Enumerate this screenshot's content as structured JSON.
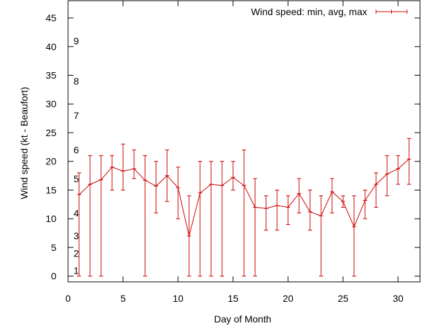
{
  "chart_data": {
    "type": "line",
    "title": "",
    "xlabel": "Day of Month",
    "ylabel": "Wind speed (kt - Beaufort)",
    "xlim": [
      0,
      32
    ],
    "ylim": [
      -1,
      48
    ],
    "xticks": [
      0,
      5,
      10,
      15,
      20,
      25,
      30
    ],
    "yticks": [
      0,
      5,
      10,
      15,
      20,
      25,
      30,
      35,
      40,
      45
    ],
    "grid": false,
    "legend": "top-right",
    "beaufort_scale": [
      {
        "label": "1",
        "kt": 1
      },
      {
        "label": "2",
        "kt": 4
      },
      {
        "label": "3",
        "kt": 7
      },
      {
        "label": "4",
        "kt": 11
      },
      {
        "label": "5",
        "kt": 17
      },
      {
        "label": "6",
        "kt": 22
      },
      {
        "label": "7",
        "kt": 28
      },
      {
        "label": "8",
        "kt": 34
      },
      {
        "label": "9",
        "kt": 41
      }
    ],
    "series": [
      {
        "name": "Wind speed: min, avg, max",
        "color": "#cc0000",
        "x": [
          1,
          2,
          3,
          4,
          5,
          6,
          7,
          8,
          9,
          10,
          11,
          12,
          13,
          14,
          15,
          16,
          17,
          18,
          19,
          20,
          21,
          22,
          23,
          24,
          25,
          26,
          27,
          28,
          29,
          30,
          31
        ],
        "avg": [
          14.2,
          16.0,
          16.8,
          19.0,
          18.3,
          18.7,
          16.7,
          15.7,
          17.5,
          15.4,
          7.0,
          14.5,
          16.0,
          15.8,
          17.2,
          15.8,
          12.0,
          11.8,
          12.3,
          12.0,
          14.4,
          11.2,
          10.5,
          14.7,
          13.0,
          8.6,
          13.2,
          16.0,
          17.8,
          18.7,
          20.4
        ],
        "min": [
          0,
          0,
          0,
          15,
          15,
          17,
          0,
          11,
          13,
          10,
          0,
          0,
          0,
          0,
          15,
          0,
          0,
          8,
          8,
          9,
          11,
          8,
          0,
          11,
          12,
          0,
          10,
          12,
          14,
          16,
          16
        ],
        "max": [
          18,
          21,
          21,
          21,
          23,
          22,
          21,
          20,
          22,
          19,
          14,
          20,
          20,
          20,
          20,
          22,
          17,
          14,
          15,
          14,
          17,
          15,
          14,
          17,
          14,
          14,
          15,
          18,
          21,
          21,
          24
        ]
      }
    ]
  }
}
